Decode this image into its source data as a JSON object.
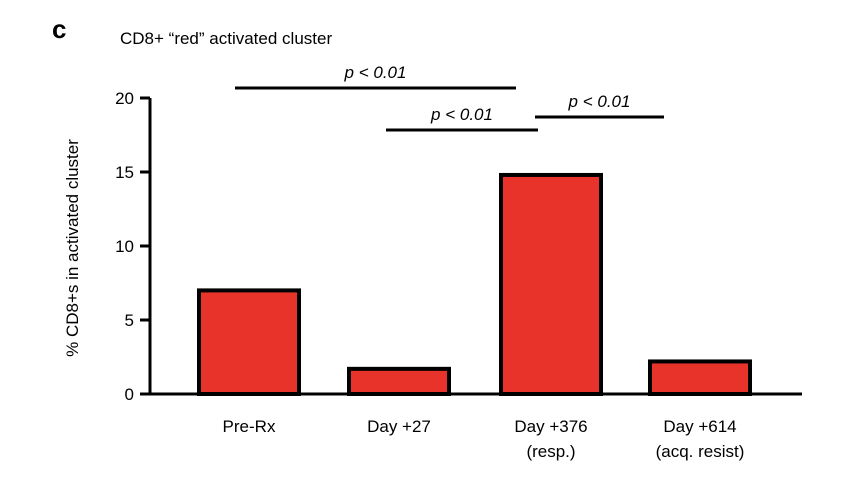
{
  "chart_data": {
    "type": "bar",
    "panel_label": "c",
    "title": "CD8+ “red” activated cluster",
    "ylabel": "% CD8+s in activated cluster",
    "xlabel": "",
    "ylim": [
      0,
      20
    ],
    "yticks": [
      0,
      5,
      10,
      15,
      20
    ],
    "categories": [
      {
        "line1": "Pre-Rx",
        "line2": ""
      },
      {
        "line1": "Day +27",
        "line2": ""
      },
      {
        "line1": "Day +376",
        "line2": "(resp.)"
      },
      {
        "line1": "Day +614",
        "line2": "(acq. resist)"
      }
    ],
    "values": [
      7.0,
      1.7,
      14.8,
      2.2
    ],
    "bar_color": "#e8332a",
    "grid": false,
    "legend": "none",
    "significance": [
      {
        "from": 0,
        "to": 2,
        "label": "p < 0.01"
      },
      {
        "from": 1,
        "to": 2,
        "label": "p < 0.01"
      },
      {
        "from": 2,
        "to": 3,
        "label": "p < 0.01"
      }
    ]
  }
}
